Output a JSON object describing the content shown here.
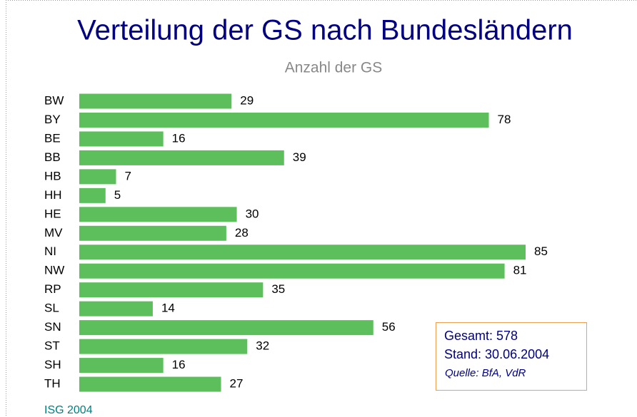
{
  "chart_data": {
    "type": "bar",
    "orientation": "horizontal",
    "title": "Verteilung der GS nach Bundesländern",
    "subtitle": "Anzahl der GS",
    "categories": [
      "BW",
      "BY",
      "BE",
      "BB",
      "HB",
      "HH",
      "HE",
      "MV",
      "NI",
      "NW",
      "RP",
      "SL",
      "SN",
      "ST",
      "SH",
      "TH"
    ],
    "values": [
      29,
      78,
      16,
      39,
      7,
      5,
      30,
      28,
      85,
      81,
      35,
      14,
      56,
      32,
      16,
      27
    ],
    "color": "#5cbf5c",
    "annotations": [
      "Gesamt: 578",
      "Stand: 30.06.2004",
      "Quelle: BfA, VdR"
    ],
    "footer": "ISG 2004"
  }
}
